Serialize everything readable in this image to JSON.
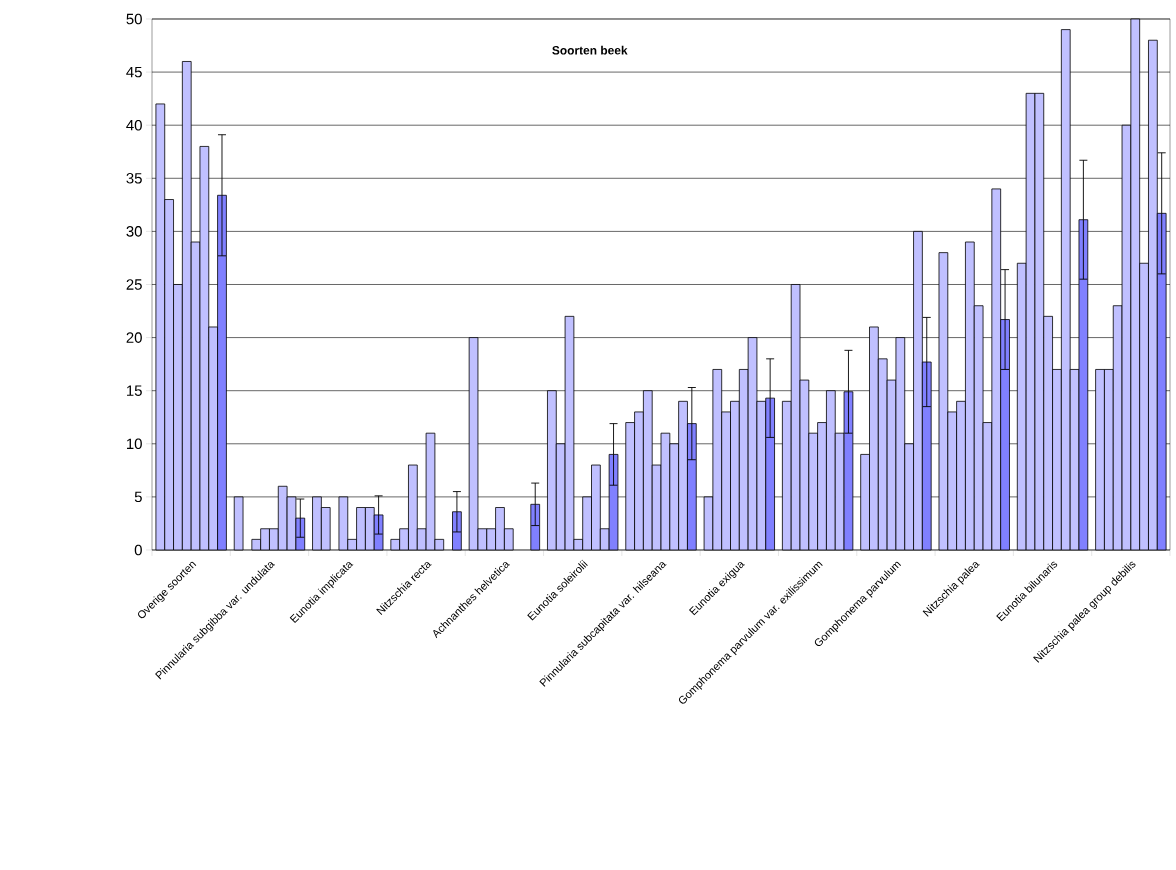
{
  "chart_data": {
    "type": "bar",
    "title": "Soorten beek",
    "categories": [
      "Overige soorten",
      "Pinnularia subgibba var. undulata",
      "Eunotia implicata",
      "Nitzschia recta",
      "Achnanthes helvetica",
      "Eunotia soleirolii",
      "Pinnularia subcapitata var. hilseana",
      "Eunotia exigua",
      "Gomphonema parvulum var. exilissimum",
      "Gomphonema parvulum",
      "Nitzschia palea",
      "Eunotia bilunaris",
      "Nitzschia palea group debilis"
    ],
    "series": [
      {
        "color": "#c0c0ff",
        "values": [
          42,
          5,
          5,
          1,
          20,
          15,
          12,
          5,
          14,
          9,
          28,
          27,
          17
        ]
      },
      {
        "color": "#c0c0ff",
        "values": [
          33,
          0,
          4,
          2,
          2,
          10,
          13,
          17,
          25,
          21,
          13,
          43,
          17
        ]
      },
      {
        "color": "#c0c0ff",
        "values": [
          25,
          1,
          0,
          8,
          2,
          22,
          15,
          13,
          16,
          18,
          14,
          43,
          23
        ]
      },
      {
        "color": "#c0c0ff",
        "values": [
          46,
          2,
          5,
          2,
          4,
          1,
          8,
          14,
          11,
          16,
          29,
          22,
          40
        ]
      },
      {
        "color": "#c0c0ff",
        "values": [
          29,
          2,
          1,
          11,
          2,
          5,
          11,
          17,
          12,
          20,
          23,
          17,
          50
        ]
      },
      {
        "color": "#c0c0ff",
        "values": [
          38,
          6,
          4,
          1,
          0,
          8,
          10,
          20,
          15,
          10,
          12,
          49,
          27
        ]
      },
      {
        "color": "#c0c0ff",
        "values": [
          21,
          5,
          4,
          0,
          0,
          2,
          14,
          14,
          11,
          30,
          34,
          17,
          48
        ]
      },
      {
        "color": "#8080ff",
        "values": [
          33.4,
          3.0,
          3.3,
          3.6,
          4.3,
          9.0,
          11.9,
          14.3,
          14.9,
          17.7,
          21.7,
          31.1,
          31.7
        ],
        "errors": [
          5.7,
          1.8,
          1.8,
          1.9,
          2.0,
          2.9,
          3.4,
          3.7,
          3.9,
          4.2,
          4.7,
          5.6,
          5.7
        ]
      }
    ],
    "ylim": [
      0,
      50
    ],
    "yticks": [
      0,
      5,
      10,
      15,
      20,
      25,
      30,
      35,
      40,
      45,
      50
    ],
    "grid": "y"
  }
}
